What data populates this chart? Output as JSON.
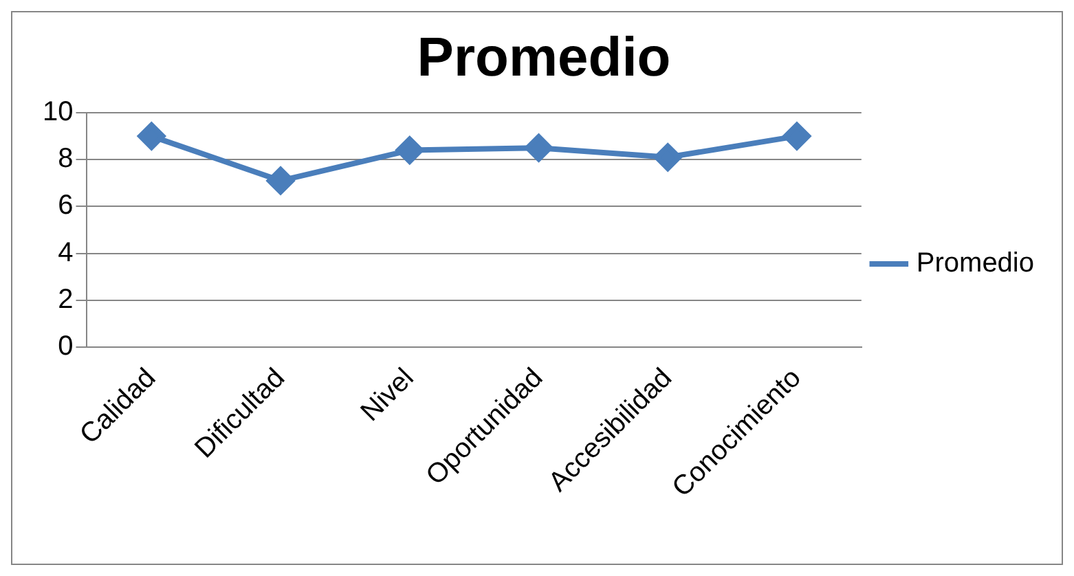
{
  "chart_data": {
    "type": "line",
    "title": "Promedio",
    "categories": [
      "Calidad",
      "Dificultad",
      "Nivel",
      "Oportunidad",
      "Accesibilidad",
      "Conocimiento"
    ],
    "series": [
      {
        "name": "Promedio",
        "color": "#4a7ebb",
        "values": [
          9.0,
          7.1,
          8.4,
          8.5,
          8.1,
          9.0
        ]
      }
    ],
    "ylim": [
      0,
      10
    ],
    "yticks": [
      0,
      2,
      4,
      6,
      8,
      10
    ],
    "grid": "y",
    "legend": "right",
    "marker": "diamond",
    "line_style": "solid"
  }
}
